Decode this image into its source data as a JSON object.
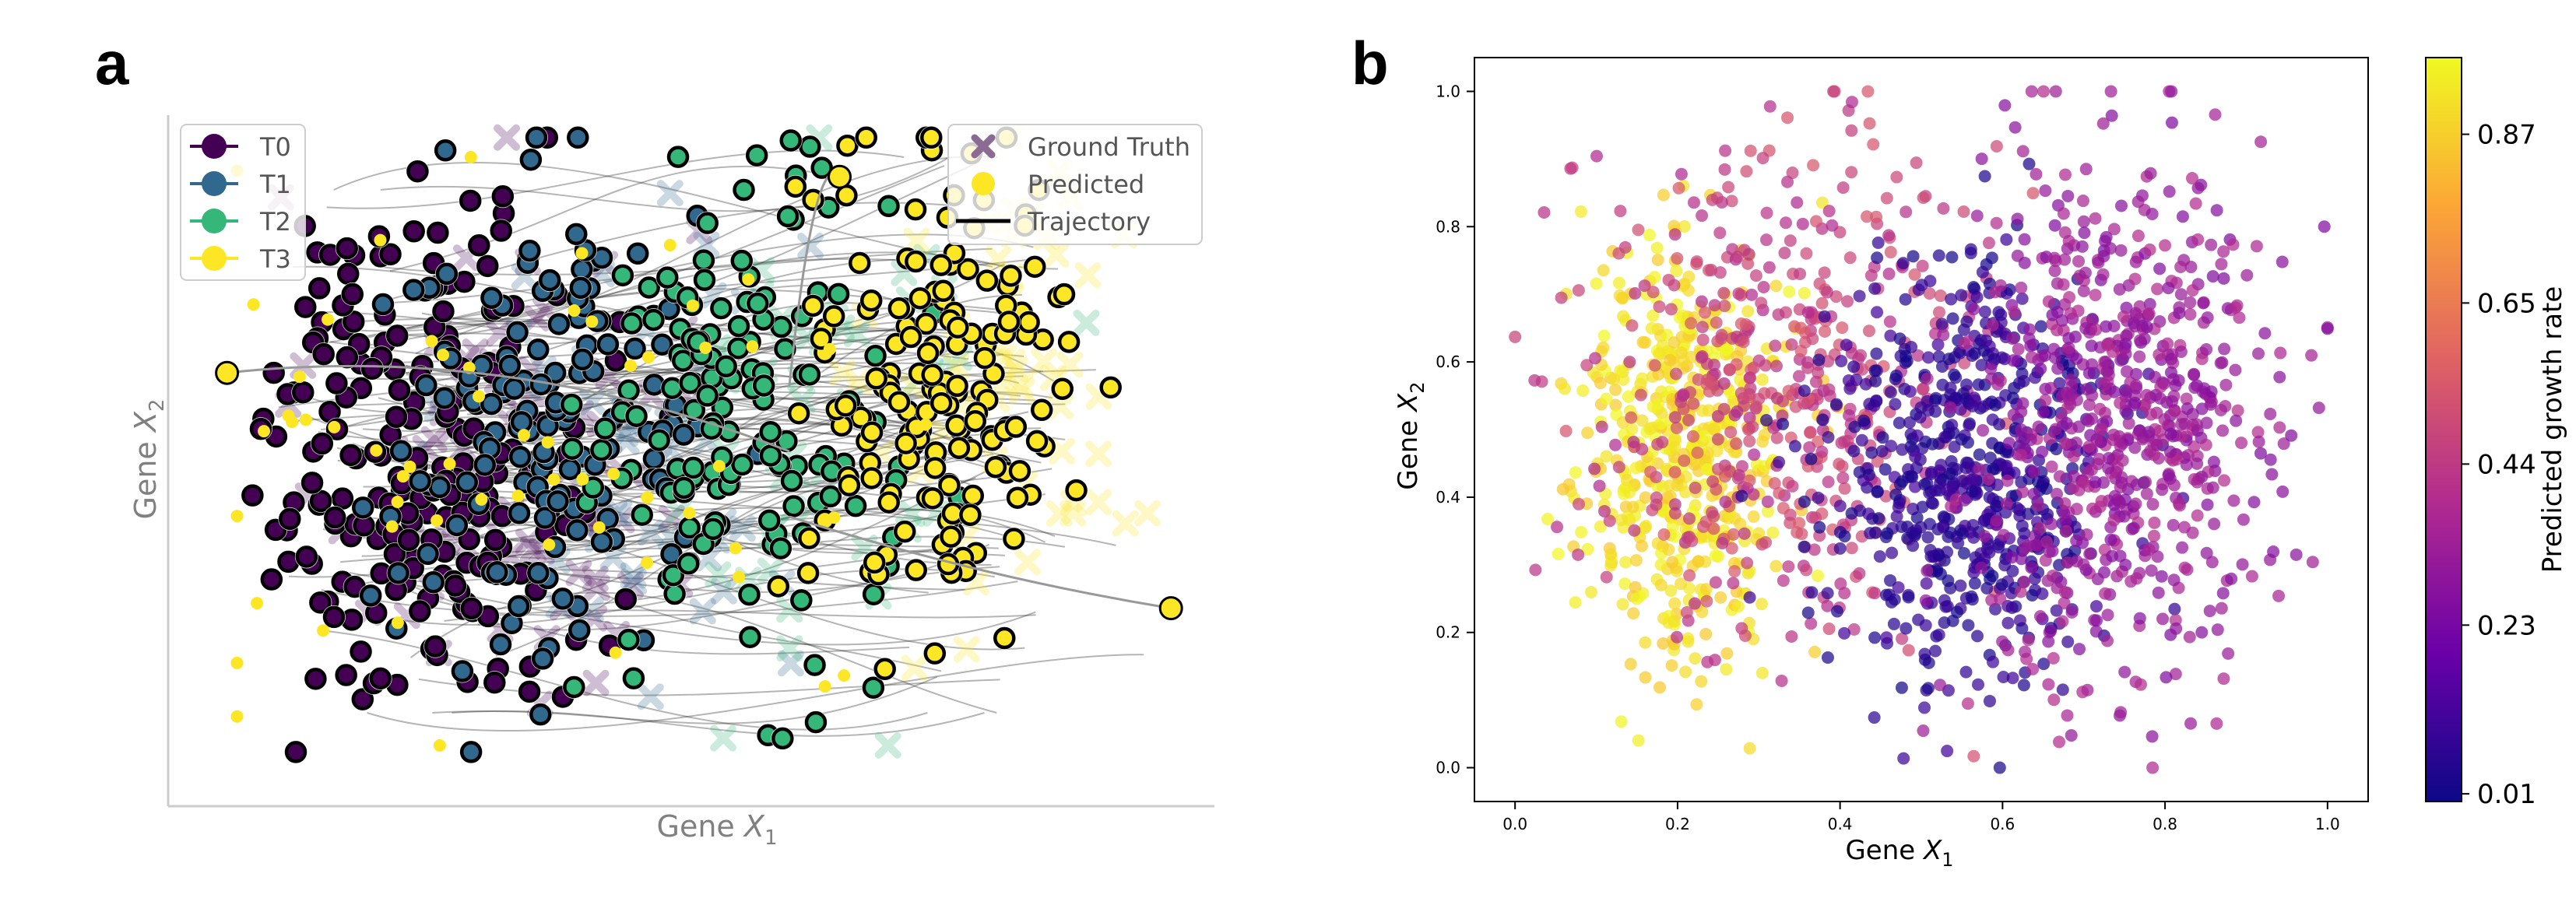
{
  "panels": {
    "a": {
      "label": "a"
    },
    "b": {
      "label": "b"
    }
  },
  "chart_data": [
    {
      "panel": "a",
      "type": "scatter",
      "title": "",
      "xlabel_main": "Gene ",
      "xlabel_var": "X",
      "xlabel_sub": "1",
      "ylabel_main": "Gene ",
      "ylabel_var": "X",
      "ylabel_sub": "2",
      "axis_ticks": false,
      "grid": false,
      "colors": {
        "T0": "#440154",
        "T1": "#31688e",
        "T2": "#35b779",
        "T3": "#fde725"
      },
      "legend_left": {
        "placement": "top-left",
        "entries": [
          {
            "label": "T0",
            "color": "#440154"
          },
          {
            "label": "T1",
            "color": "#31688e"
          },
          {
            "label": "T2",
            "color": "#35b779"
          },
          {
            "label": "T3",
            "color": "#fde725"
          }
        ]
      },
      "legend_right": {
        "placement": "top-right",
        "entries": [
          {
            "label": "Ground Truth",
            "marker": "x",
            "color": "#8b6a93"
          },
          {
            "label": "Predicted",
            "marker": "dot",
            "color": "#fde725"
          },
          {
            "label": "Trajectory",
            "marker": "line",
            "color": "#000000"
          }
        ]
      },
      "clusters": [
        {
          "name": "T0",
          "cx": 0.24,
          "cy": 0.5,
          "sx": 0.085,
          "sy": 0.19,
          "count": 230
        },
        {
          "name": "T1",
          "cx": 0.36,
          "cy": 0.52,
          "sx": 0.08,
          "sy": 0.18,
          "count": 150
        },
        {
          "name": "T2",
          "cx": 0.55,
          "cy": 0.55,
          "sx": 0.075,
          "sy": 0.18,
          "count": 150
        },
        {
          "name": "T3",
          "cx": 0.75,
          "cy": 0.6,
          "sx": 0.065,
          "sy": 0.18,
          "count": 170
        }
      ],
      "outlier_points": [
        {
          "x": 0.98,
          "y": 0.26,
          "color": "#fde725"
        },
        {
          "x": 0.04,
          "y": 0.62,
          "color": "#fde725"
        },
        {
          "x": 0.65,
          "y": 0.92,
          "color": "#fde725"
        }
      ]
    },
    {
      "panel": "b",
      "type": "scatter",
      "title": "",
      "xlabel_main": "Gene ",
      "xlabel_var": "X",
      "xlabel_sub": "1",
      "ylabel_main": "Gene ",
      "ylabel_var": "X",
      "ylabel_sub": "2",
      "xlim": [
        -0.05,
        1.05
      ],
      "ylim": [
        -0.05,
        1.05
      ],
      "xticks": [
        "0.0",
        "0.2",
        "0.4",
        "0.6",
        "0.8",
        "1.0"
      ],
      "yticks": [
        "0.0",
        "0.2",
        "0.4",
        "0.6",
        "0.8",
        "1.0"
      ],
      "grid": false,
      "colorbar": {
        "label": "Predicted growth rate",
        "ticks": [
          "0.01",
          "0.23",
          "0.44",
          "0.65",
          "0.87"
        ],
        "tick_values": [
          0.01,
          0.23,
          0.44,
          0.65,
          0.87
        ],
        "range": [
          0.0,
          0.97
        ],
        "colormap": "plasma",
        "stops": [
          "#0d0887",
          "#6a00a8",
          "#b12a90",
          "#e16462",
          "#fca636",
          "#f0f921"
        ]
      },
      "clusters": [
        {
          "cx": 0.2,
          "cy": 0.47,
          "sx": 0.065,
          "sy": 0.16,
          "count": 520,
          "value_range": [
            0.85,
            0.97
          ]
        },
        {
          "cx": 0.33,
          "cy": 0.55,
          "sx": 0.12,
          "sy": 0.18,
          "count": 500,
          "value_range": [
            0.38,
            0.55
          ]
        },
        {
          "cx": 0.56,
          "cy": 0.44,
          "sx": 0.09,
          "sy": 0.15,
          "count": 620,
          "value_range": [
            0.01,
            0.12
          ]
        },
        {
          "cx": 0.75,
          "cy": 0.52,
          "sx": 0.09,
          "sy": 0.19,
          "count": 680,
          "value_range": [
            0.25,
            0.4
          ]
        }
      ]
    }
  ]
}
